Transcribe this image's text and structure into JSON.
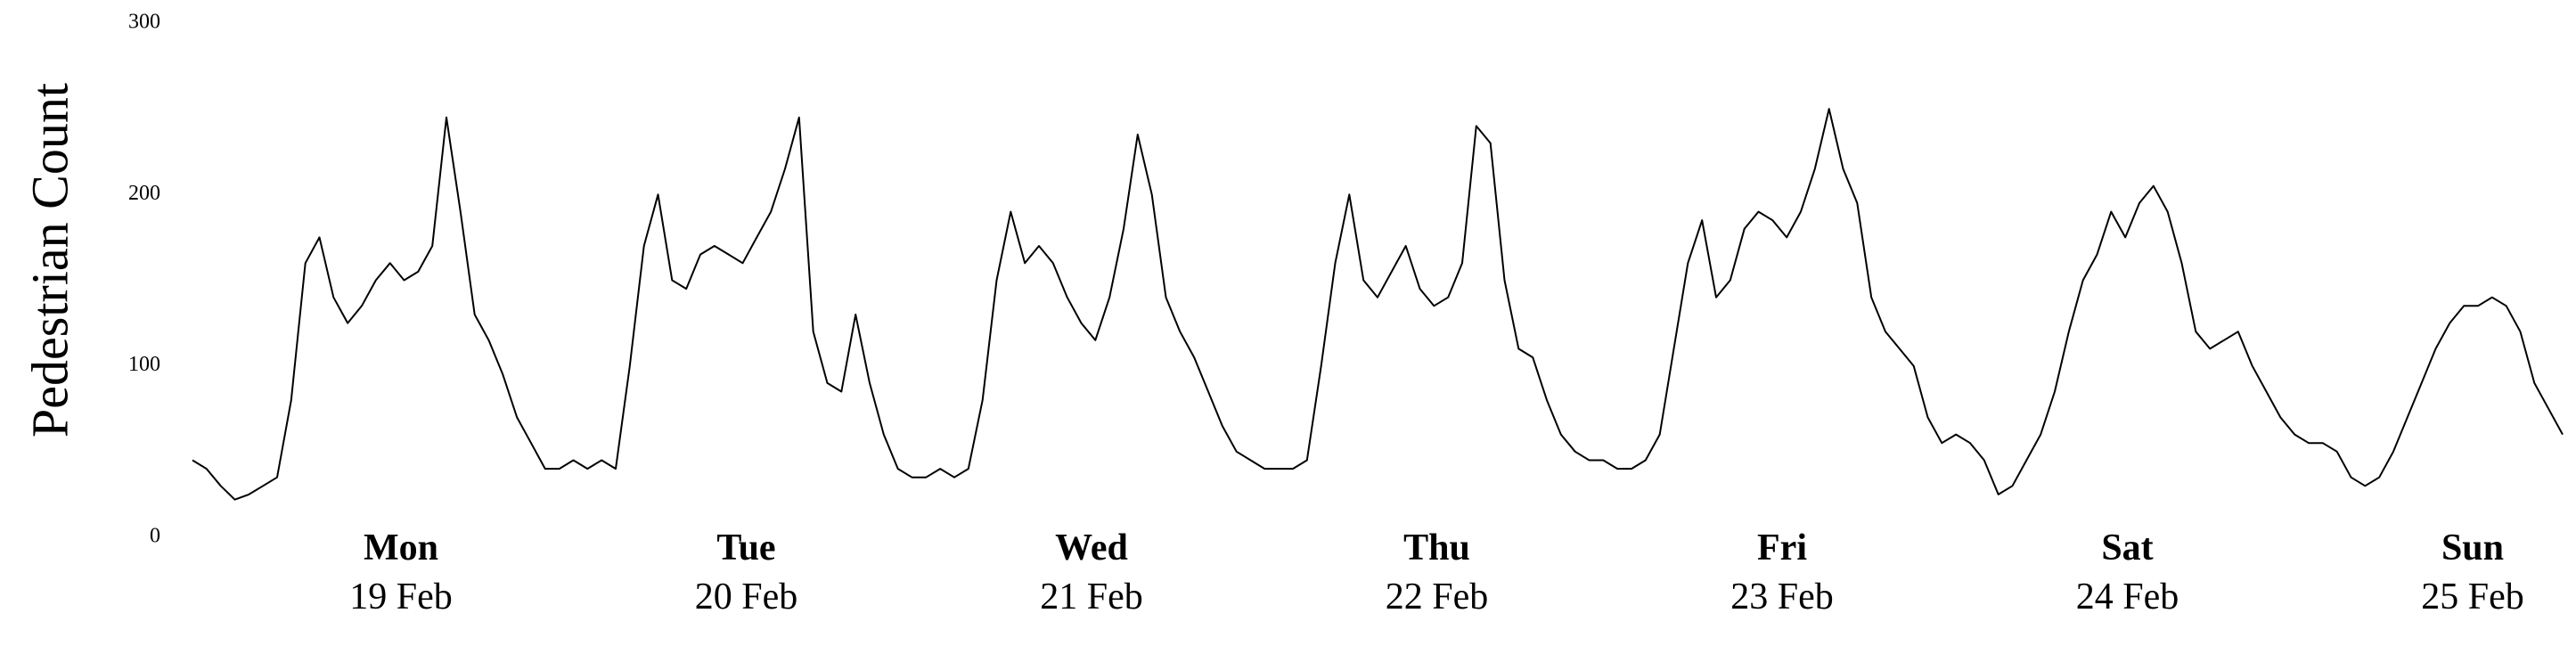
{
  "chart_data": {
    "type": "line",
    "ylabel": "Pedestrian Count",
    "ylim": [
      0,
      300
    ],
    "yticks": [
      0,
      100,
      200,
      300
    ],
    "grid": false,
    "xtick_labels": [
      {
        "day": "Mon",
        "date": "19 Feb"
      },
      {
        "day": "Tue",
        "date": "20 Feb"
      },
      {
        "day": "Wed",
        "date": "21 Feb"
      },
      {
        "day": "Thu",
        "date": "22 Feb"
      },
      {
        "day": "Fri",
        "date": "23 Feb"
      },
      {
        "day": "Sat",
        "date": "24 Feb"
      },
      {
        "day": "Sun",
        "date": "25 Feb"
      }
    ],
    "series": [
      {
        "color": "#000000",
        "values": [
          45,
          40,
          30,
          22,
          25,
          30,
          35,
          80,
          160,
          175,
          140,
          125,
          135,
          150,
          160,
          150,
          155,
          170,
          245,
          190,
          130,
          115,
          95,
          70,
          55,
          40,
          40,
          45,
          40,
          45,
          40,
          100,
          170,
          200,
          150,
          145,
          165,
          170,
          165,
          160,
          175,
          190,
          215,
          245,
          120,
          90,
          85,
          130,
          90,
          60,
          40,
          35,
          35,
          40,
          35,
          40,
          80,
          150,
          190,
          160,
          170,
          160,
          140,
          125,
          115,
          140,
          180,
          235,
          200,
          140,
          120,
          105,
          85,
          65,
          50,
          45,
          40,
          40,
          40,
          45,
          100,
          160,
          200,
          150,
          140,
          155,
          170,
          145,
          135,
          140,
          160,
          240,
          230,
          150,
          110,
          105,
          80,
          60,
          50,
          45,
          45,
          40,
          40,
          45,
          60,
          110,
          160,
          185,
          140,
          150,
          180,
          190,
          185,
          175,
          190,
          215,
          250,
          215,
          195,
          140,
          120,
          110,
          100,
          70,
          55,
          60,
          55,
          45,
          25,
          30,
          45,
          60,
          85,
          120,
          150,
          165,
          190,
          175,
          195,
          205,
          190,
          160,
          120,
          110,
          115,
          120,
          100,
          85,
          70,
          60,
          55,
          55,
          50,
          35,
          30,
          35,
          50,
          70,
          90,
          110,
          125,
          135,
          135,
          140,
          135,
          120,
          90,
          75,
          60
        ]
      }
    ]
  }
}
